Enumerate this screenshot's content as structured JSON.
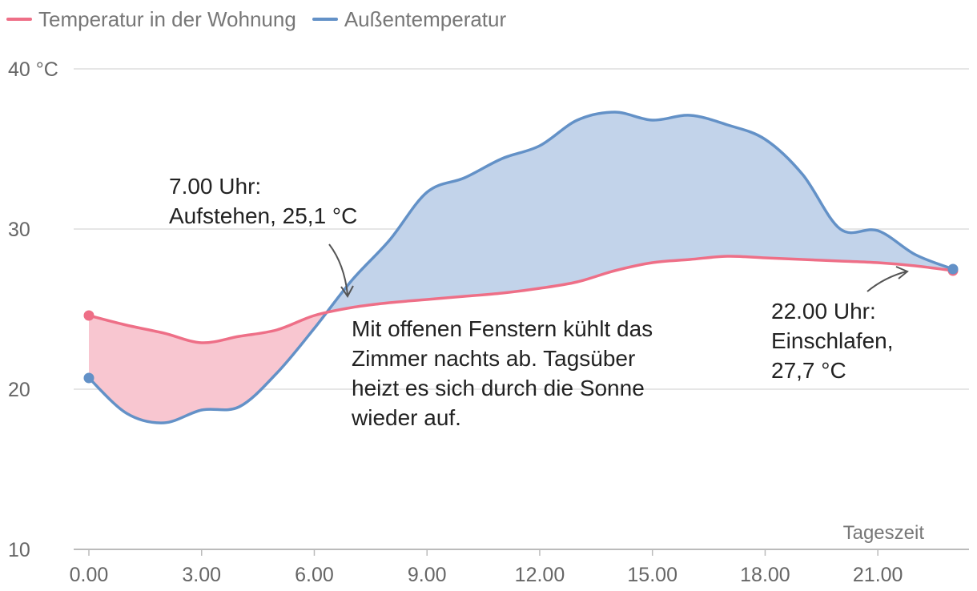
{
  "colors": {
    "inside": "#ee6f87",
    "inside_fill": "#f8c6d0",
    "outside": "#6391c7",
    "outside_fill": "#c2d3ea",
    "grid": "#dddddd",
    "axis": "#bbbbbb",
    "annotation_arrow": "#555555"
  },
  "legend": [
    {
      "label": "Temperatur in der Wohnung",
      "color": "#ee6f87"
    },
    {
      "label": "Außentemperatur",
      "color": "#6391c7"
    }
  ],
  "annotations": {
    "morning": "7.00 Uhr:\nAufstehen, 25,1 °C",
    "middle": "Mit offenen Fenstern kühlt das\nZimmer nachts ab. Tagsüber\nheizt es sich durch die Sonne\nwieder auf.",
    "evening": "22.00 Uhr:\nEinschlafen,\n27,7 °C"
  },
  "chart_data": {
    "type": "area",
    "title": "",
    "xlabel": "Tageszeit",
    "ylabel": "",
    "xlim": [
      0,
      23
    ],
    "ylim": [
      10,
      40
    ],
    "x_ticks": [
      0,
      3,
      6,
      9,
      12,
      15,
      18,
      21
    ],
    "x_tick_labels": [
      "0.00",
      "3.00",
      "6.00",
      "9.00",
      "12.00",
      "15.00",
      "18.00",
      "21.00"
    ],
    "y_ticks": [
      10,
      20,
      30,
      40
    ],
    "y_tick_labels": [
      "10",
      "20",
      "30",
      "40 °C"
    ],
    "grid": true,
    "legend_position": "top-left",
    "x": [
      0,
      1,
      2,
      3,
      4,
      5,
      6,
      7,
      8,
      9,
      10,
      11,
      12,
      13,
      14,
      15,
      16,
      17,
      18,
      19,
      20,
      21,
      22,
      23
    ],
    "series": [
      {
        "name": "Temperatur in der Wohnung",
        "values": [
          24.6,
          24.0,
          23.5,
          22.9,
          23.3,
          23.7,
          24.6,
          25.1,
          25.4,
          25.6,
          25.8,
          26.0,
          26.3,
          26.7,
          27.4,
          27.9,
          28.1,
          28.3,
          28.2,
          28.1,
          28.0,
          27.9,
          27.7,
          27.4
        ]
      },
      {
        "name": "Außentemperatur",
        "values": [
          20.7,
          18.5,
          17.9,
          18.7,
          18.9,
          21.0,
          23.8,
          26.8,
          29.3,
          32.3,
          33.2,
          34.4,
          35.2,
          36.8,
          37.3,
          36.8,
          37.1,
          36.5,
          35.6,
          33.4,
          30.0,
          29.9,
          28.4,
          27.5
        ]
      }
    ]
  }
}
